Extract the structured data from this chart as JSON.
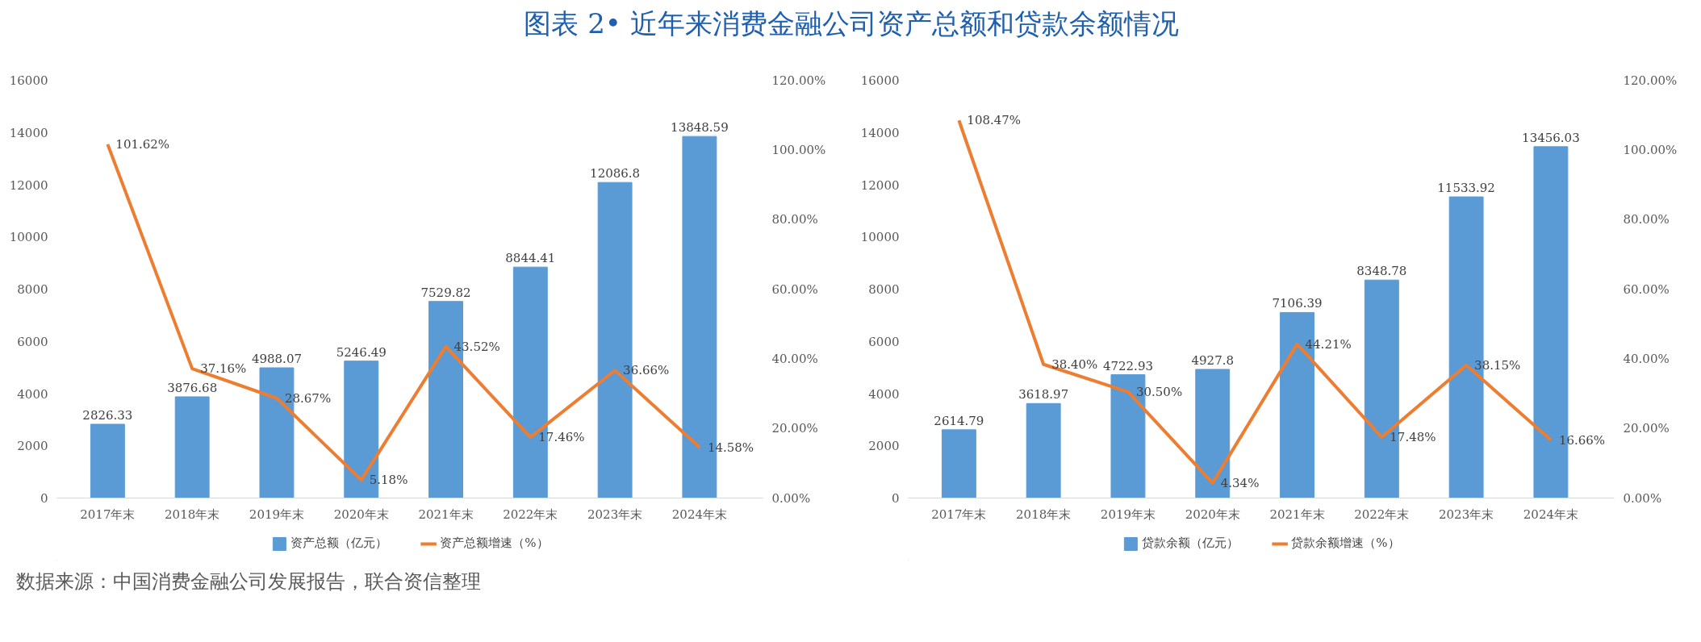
{
  "chart_data": [
    {
      "type": "bar",
      "title": "图表 2• 近年来消费金融公司资产总额和贷款余额情况",
      "categories": [
        "2017年末",
        "2018年末",
        "2019年末",
        "2020年末",
        "2021年末",
        "2022年末",
        "2023年末",
        "2024年末"
      ],
      "series": [
        {
          "name": "资产总额（亿元）",
          "color": "#5b9bd5",
          "values": [
            2826.33,
            3876.68,
            4988.07,
            5246.49,
            7529.82,
            8844.41,
            12086.8,
            13848.59
          ],
          "value_labels": [
            "2826.33",
            "3876.68",
            "4988.07",
            "5246.49",
            "7529.82",
            "8844.41",
            "12086.8",
            "13848.59"
          ]
        },
        {
          "name": "资产总额增速（%）",
          "type": "line",
          "axis": "y2",
          "color": "#ed7d31",
          "values": [
            101.62,
            37.16,
            28.67,
            5.18,
            43.52,
            17.46,
            36.66,
            14.58
          ],
          "value_labels": [
            "101.62%",
            "37.16%",
            "28.67%",
            "5.18%",
            "43.52%",
            "17.46%",
            "36.66%",
            "14.58%"
          ]
        }
      ],
      "ylim": [
        0,
        16000
      ],
      "yticks": [
        0,
        2000,
        4000,
        6000,
        8000,
        10000,
        12000,
        14000,
        16000
      ],
      "y2lim": [
        0,
        120
      ],
      "y2ticks": [
        {
          "value": 0,
          "label": "0.00%"
        },
        {
          "value": 20,
          "label": "20.00%"
        },
        {
          "value": 40,
          "label": "40.00%"
        },
        {
          "value": 60,
          "label": "60.00%"
        },
        {
          "value": 80,
          "label": "80.00%"
        },
        {
          "value": 100,
          "label": "100.00%"
        },
        {
          "value": 120,
          "label": "120.00%"
        }
      ],
      "grid": false,
      "legend": "bottom",
      "line_style": "solid",
      "marker": "none"
    },
    {
      "type": "bar",
      "categories": [
        "2017年末",
        "2018年末",
        "2019年末",
        "2020年末",
        "2021年末",
        "2022年末",
        "2023年末",
        "2024年末"
      ],
      "series": [
        {
          "name": "贷款余额（亿元）",
          "color": "#5b9bd5",
          "values": [
            2614.79,
            3618.97,
            4722.93,
            4927.8,
            7106.39,
            8348.78,
            11533.92,
            13456.03
          ],
          "value_labels": [
            "2614.79",
            "3618.97",
            "4722.93",
            "4927.8",
            "7106.39",
            "8348.78",
            "11533.92",
            "13456.03"
          ]
        },
        {
          "name": "贷款余额增速（%）",
          "type": "line",
          "axis": "y2",
          "color": "#ed7d31",
          "values": [
            108.47,
            38.4,
            30.5,
            4.34,
            44.21,
            17.48,
            38.15,
            16.66
          ],
          "value_labels": [
            "108.47%",
            "38.40%",
            "30.50%",
            "4.34%",
            "44.21%",
            "17.48%",
            "38.15%",
            "16.66%"
          ]
        }
      ],
      "ylim": [
        0,
        16000
      ],
      "yticks": [
        0,
        2000,
        4000,
        6000,
        8000,
        10000,
        12000,
        14000,
        16000
      ],
      "y2lim": [
        0,
        120
      ],
      "y2ticks": [
        {
          "value": 0,
          "label": "0.00%"
        },
        {
          "value": 20,
          "label": "20.00%"
        },
        {
          "value": 40,
          "label": "40.00%"
        },
        {
          "value": 60,
          "label": "60.00%"
        },
        {
          "value": 80,
          "label": "80.00%"
        },
        {
          "value": 100,
          "label": "100.00%"
        },
        {
          "value": 120,
          "label": "120.00%"
        }
      ],
      "grid": false,
      "legend": "bottom",
      "line_style": "solid",
      "marker": "none",
      "annotations": [
        "数据来源：中国消费金融公司发展报告，联合资信整理"
      ]
    }
  ]
}
